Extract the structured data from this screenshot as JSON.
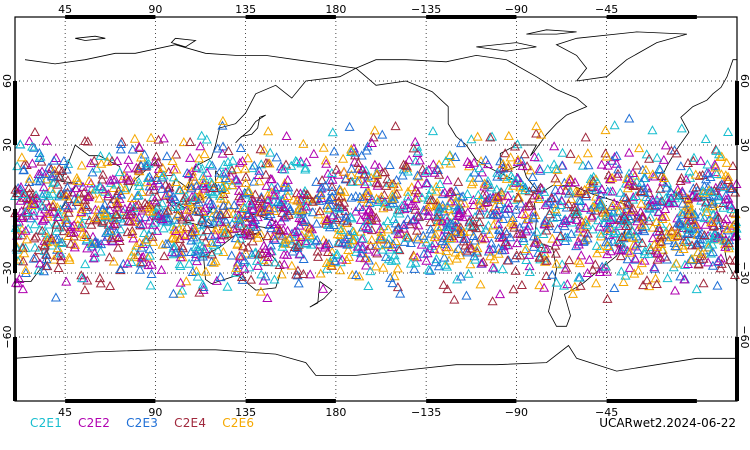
{
  "map": {
    "projection": "equirectangular",
    "central_longitude": 180,
    "lon_range": [
      20,
      380
    ],
    "lat_range": [
      -90,
      90
    ],
    "gridlines": "dotted",
    "x_ticks": [
      {
        "lon": 45,
        "label": "45"
      },
      {
        "lon": 90,
        "label": "90"
      },
      {
        "lon": 135,
        "label": "135"
      },
      {
        "lon": 180,
        "label": "180"
      },
      {
        "lon": 225,
        "label": "−135"
      },
      {
        "lon": 270,
        "label": "−90"
      },
      {
        "lon": 315,
        "label": "−45"
      }
    ],
    "y_ticks": [
      {
        "lat": 60,
        "label": "60"
      },
      {
        "lat": 30,
        "label": "30"
      },
      {
        "lat": 0,
        "label": "0"
      },
      {
        "lat": -30,
        "label": "−30"
      },
      {
        "lat": -60,
        "label": "−60"
      }
    ],
    "marker_shape": "open-triangle",
    "marker_lat_band": [
      -50,
      45
    ]
  },
  "legend": [
    {
      "name": "C2E1",
      "color": "#17becf"
    },
    {
      "name": "C2E2",
      "color": "#b000b0"
    },
    {
      "name": "C2E3",
      "color": "#1f6fd6"
    },
    {
      "name": "C2E4",
      "color": "#a0283c"
    },
    {
      "name": "C2E6",
      "color": "#f5a800"
    }
  ],
  "dataset_label": "UCARwet2.2024-06-22"
}
